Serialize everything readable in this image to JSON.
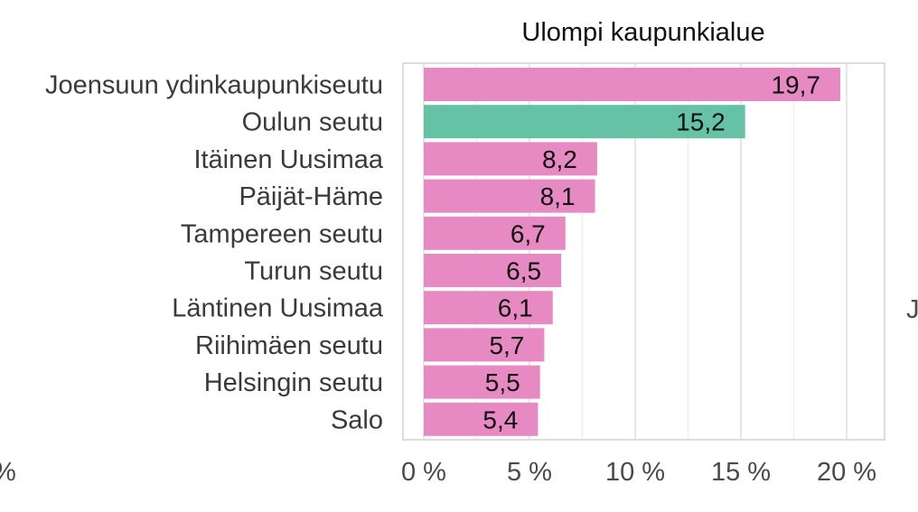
{
  "chart_data": {
    "type": "bar",
    "orientation": "horizontal",
    "title": "Ulompi kaupunkialue",
    "categories": [
      "Joensuun ydinkaupunkiseutu",
      "Oulun seutu",
      "Itäinen Uusimaa",
      "Päijät-Häme",
      "Tampereen seutu",
      "Turun seutu",
      "Läntinen Uusimaa",
      "Riihimäen seutu",
      "Helsingin seutu",
      "Salo"
    ],
    "values": [
      19.7,
      15.2,
      8.2,
      8.1,
      6.7,
      6.5,
      6.1,
      5.7,
      5.5,
      5.4
    ],
    "value_labels": [
      "19,7",
      "15,2",
      "8,2",
      "8,1",
      "6,7",
      "6,5",
      "6,1",
      "5,7",
      "5,5",
      "5,4"
    ],
    "bar_colors": [
      "#e78ac3",
      "#66c2a5",
      "#e78ac3",
      "#e78ac3",
      "#e78ac3",
      "#e78ac3",
      "#e78ac3",
      "#e78ac3",
      "#e78ac3",
      "#e78ac3"
    ],
    "xlim": [
      -1,
      21.5
    ],
    "xticks": [
      0,
      5,
      10,
      15,
      20
    ],
    "xtick_labels": [
      "0 %",
      "5 %",
      "10 %",
      "15 %",
      "20 %"
    ],
    "grid": true,
    "neighbor_panel_fragments": {
      "left_tick": "%",
      "right_label": "J"
    }
  }
}
